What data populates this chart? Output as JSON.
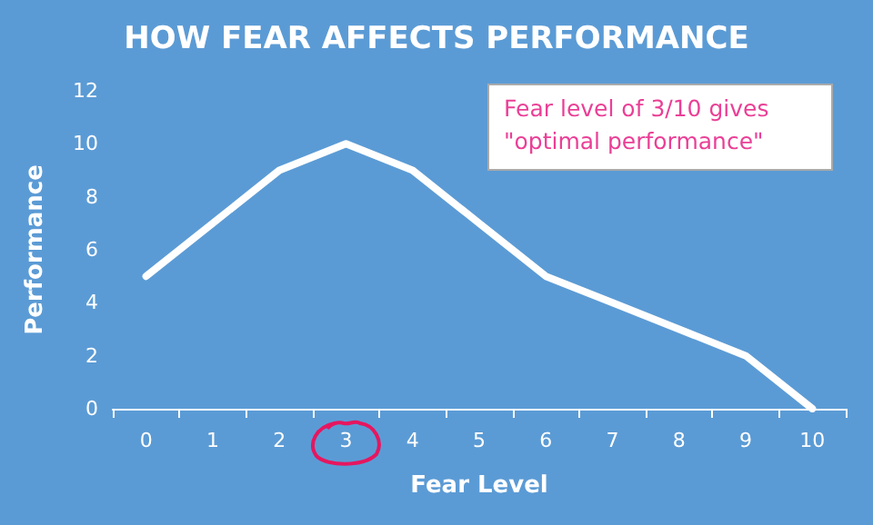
{
  "chart_data": {
    "type": "line",
    "title": "HOW FEAR AFFECTS PERFORMANCE",
    "xlabel": "Fear Level",
    "ylabel": "Performance",
    "categories": [
      "0",
      "1",
      "2",
      "3",
      "4",
      "5",
      "6",
      "7",
      "8",
      "9",
      "10"
    ],
    "series": [
      {
        "color": "#ffffff",
        "values": [
          5,
          7,
          9,
          10,
          9,
          7,
          5,
          4,
          3,
          2,
          0
        ]
      }
    ],
    "ylim": [
      0,
      12
    ],
    "yticks": [
      0,
      2,
      4,
      6,
      8,
      10,
      12
    ],
    "grid": false,
    "marker": "none",
    "line_style": "solid",
    "annotations": [
      "Fear level of 3/10 gives \"optimal performance\""
    ]
  }
}
